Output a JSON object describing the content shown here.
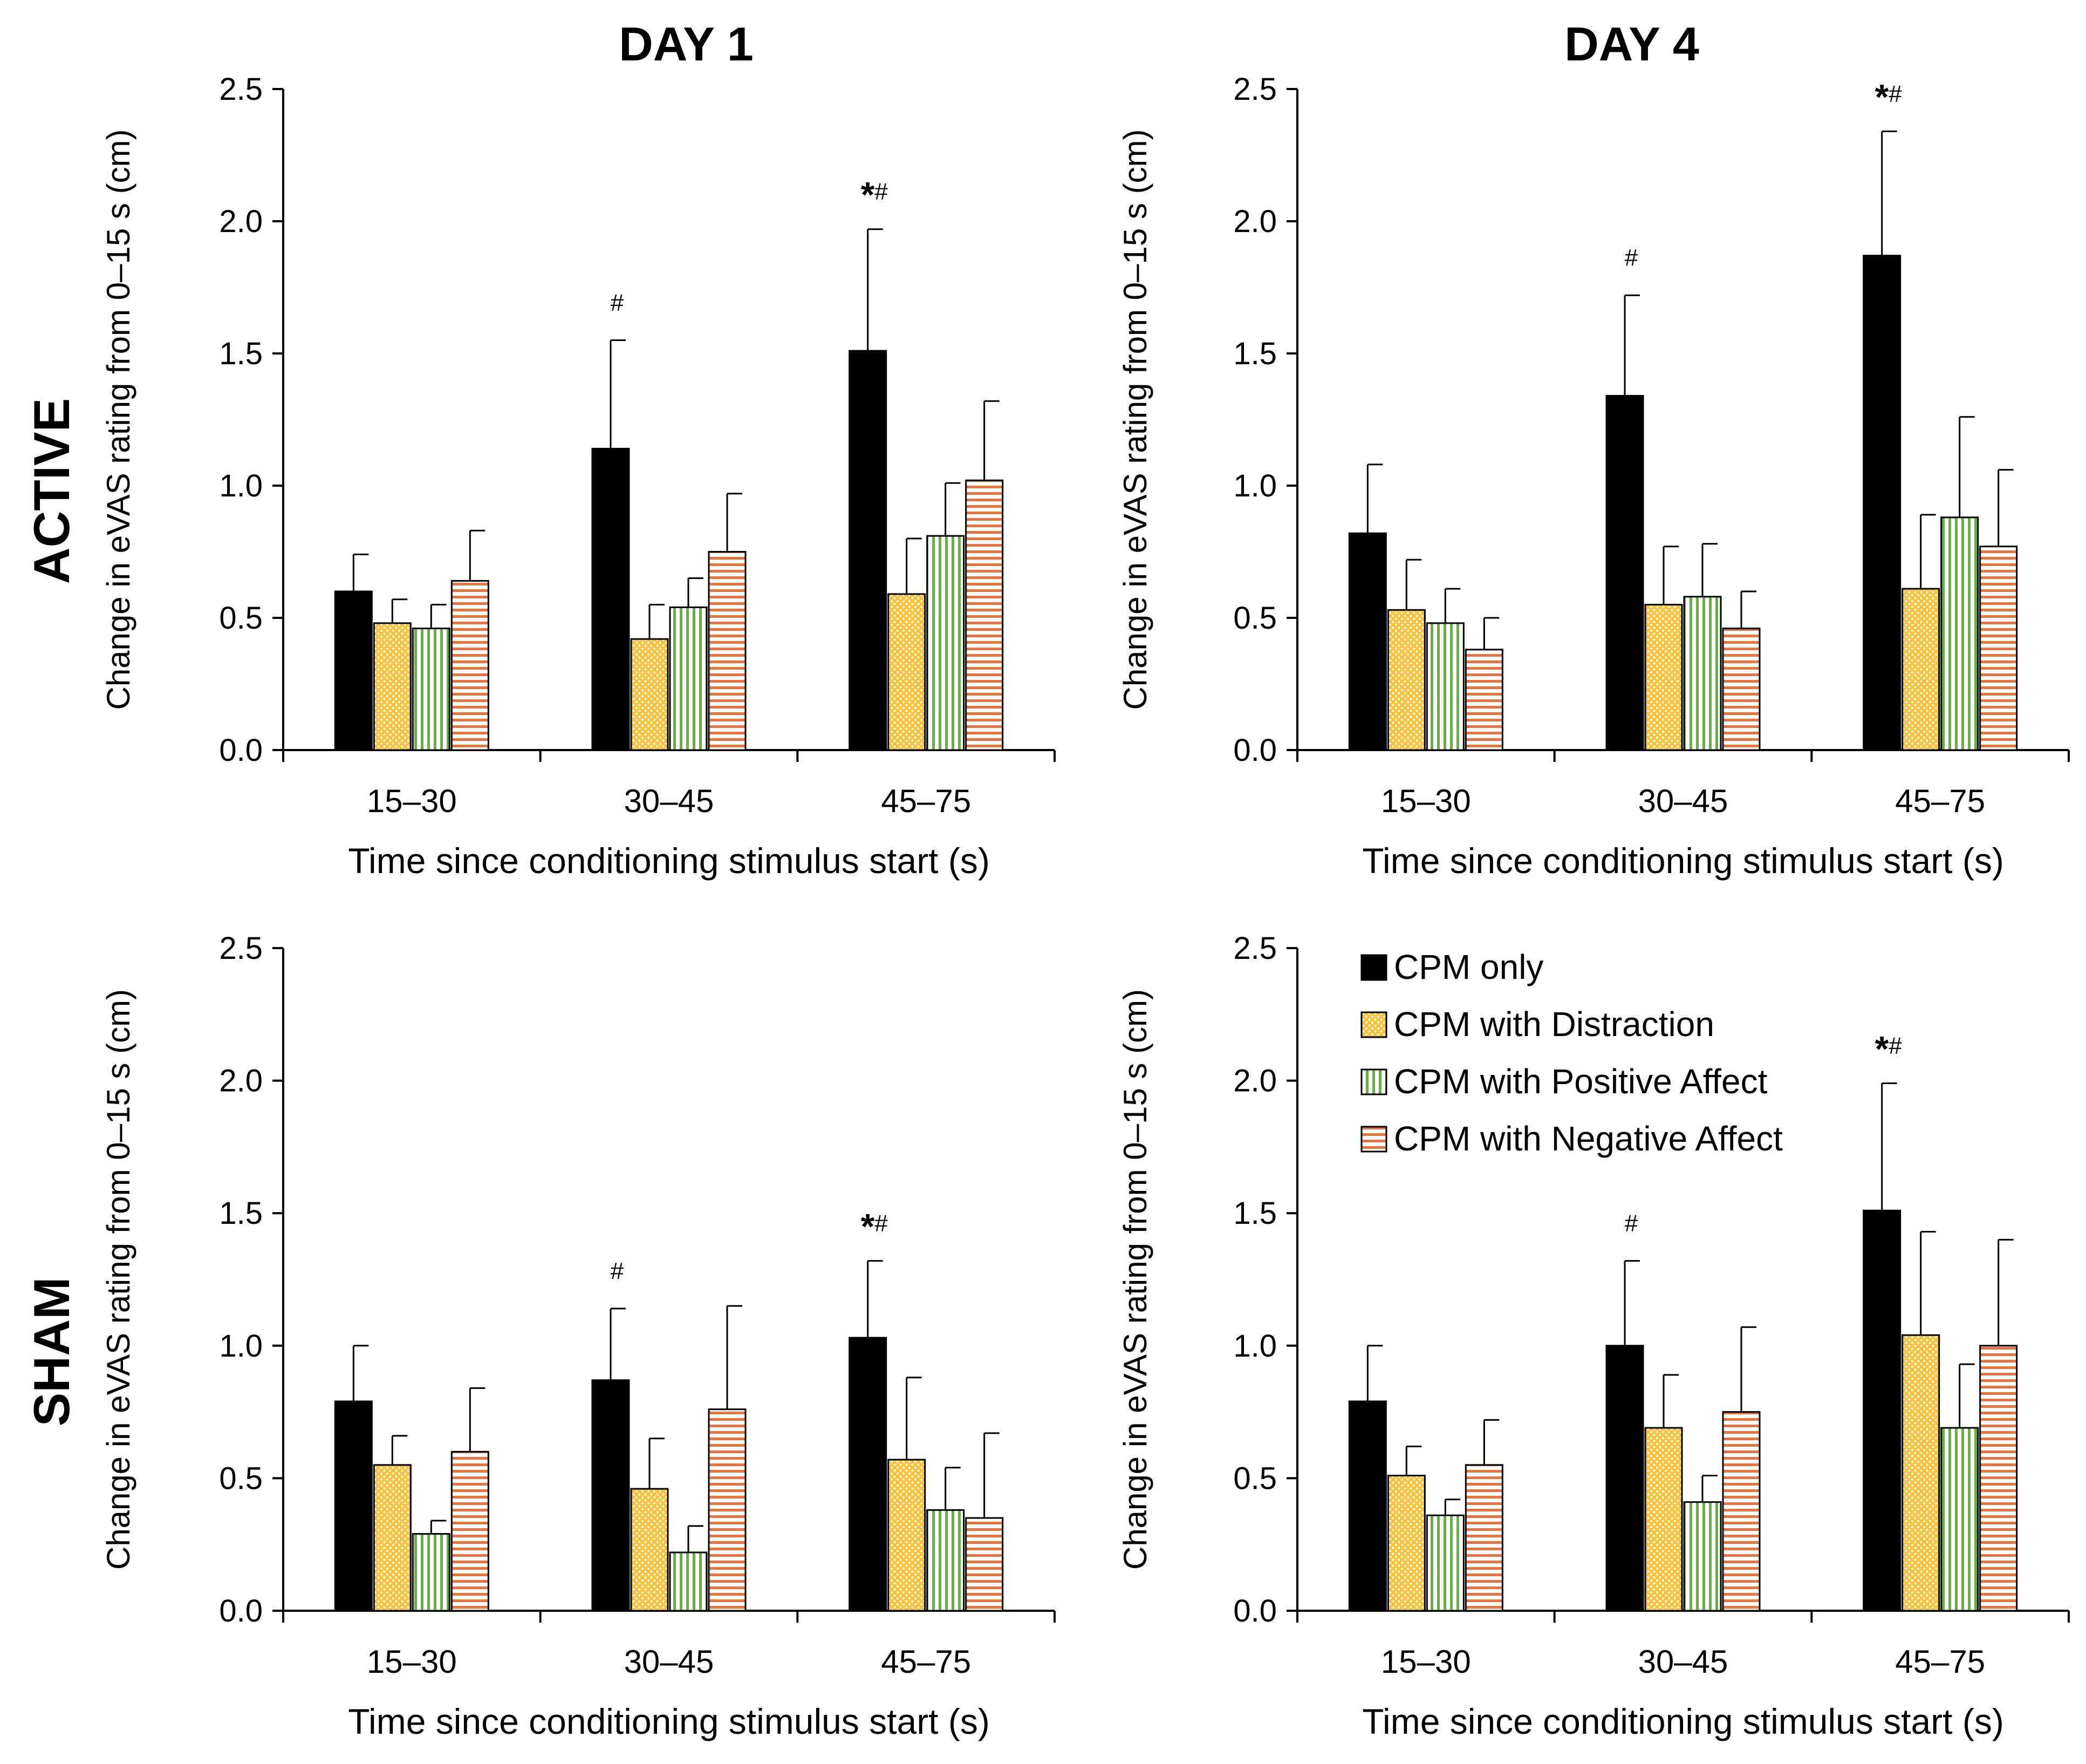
{
  "figure": {
    "col_titles": [
      "DAY 1",
      "DAY 4"
    ],
    "row_titles": [
      "ACTIVE",
      "SHAM"
    ]
  },
  "legend": {
    "items": [
      {
        "label": "CPM only",
        "pattern": "solid"
      },
      {
        "label": "CPM with Distraction",
        "pattern": "dots"
      },
      {
        "label": "CPM with Positive Affect",
        "pattern": "vertical"
      },
      {
        "label": "CPM with Negative Affect",
        "pattern": "horizontal"
      }
    ]
  },
  "colors": {
    "cpm_only": "#000000",
    "distraction": "#F5C242",
    "distraction_dot": "#FFF6D6",
    "positive": "#6AAF45",
    "negative": "#E8743B",
    "axis": "#000000"
  },
  "chart_data": [
    {
      "type": "bar",
      "panel": "active-day1",
      "title": "DAY 1",
      "row_title": "ACTIVE",
      "categories": [
        "15–30",
        "30–45",
        "45–75"
      ],
      "xlabel": "Time since conditioning stimulus start (s)",
      "ylabel": "Change in eVAS rating from 0–15 s (cm)",
      "ylim": [
        0,
        2.5
      ],
      "yticks": [
        "0.0",
        "0.5",
        "1.0",
        "1.5",
        "2.0",
        "2.5"
      ],
      "series": [
        {
          "name": "CPM only",
          "values": [
            0.6,
            1.14,
            1.51
          ],
          "errors": [
            0.14,
            0.41,
            0.46
          ]
        },
        {
          "name": "CPM with Distraction",
          "values": [
            0.48,
            0.42,
            0.59
          ],
          "errors": [
            0.09,
            0.13,
            0.21
          ]
        },
        {
          "name": "CPM with Positive Affect",
          "values": [
            0.46,
            0.54,
            0.81
          ],
          "errors": [
            0.09,
            0.11,
            0.2
          ]
        },
        {
          "name": "CPM with Negative Affect",
          "values": [
            0.64,
            0.75,
            1.02
          ],
          "errors": [
            0.19,
            0.22,
            0.3
          ]
        }
      ],
      "annotations": [
        {
          "category": 1,
          "star": "",
          "hash": "#"
        },
        {
          "category": 2,
          "star": "*",
          "hash": "#"
        }
      ]
    },
    {
      "type": "bar",
      "panel": "active-day4",
      "title": "DAY 4",
      "row_title": "ACTIVE",
      "categories": [
        "15–30",
        "30–45",
        "45–75"
      ],
      "xlabel": "Time since conditioning stimulus start (s)",
      "ylabel": "Change in eVAS rating from 0–15 s (cm)",
      "ylim": [
        0,
        2.5
      ],
      "yticks": [
        "0.0",
        "0.5",
        "1.0",
        "1.5",
        "2.0",
        "2.5"
      ],
      "series": [
        {
          "name": "CPM only",
          "values": [
            0.82,
            1.34,
            1.87
          ],
          "errors": [
            0.26,
            0.38,
            0.47
          ]
        },
        {
          "name": "CPM with Distraction",
          "values": [
            0.53,
            0.55,
            0.61
          ],
          "errors": [
            0.19,
            0.22,
            0.28
          ]
        },
        {
          "name": "CPM with Positive Affect",
          "values": [
            0.48,
            0.58,
            0.88
          ],
          "errors": [
            0.13,
            0.2,
            0.38
          ]
        },
        {
          "name": "CPM with Negative Affect",
          "values": [
            0.38,
            0.46,
            0.77
          ],
          "errors": [
            0.12,
            0.14,
            0.29
          ]
        }
      ],
      "annotations": [
        {
          "category": 1,
          "star": "",
          "hash": "#"
        },
        {
          "category": 2,
          "star": "*",
          "hash": "#"
        }
      ]
    },
    {
      "type": "bar",
      "panel": "sham-day1",
      "title": "DAY 1",
      "row_title": "SHAM",
      "categories": [
        "15–30",
        "30–45",
        "45–75"
      ],
      "xlabel": "Time since conditioning stimulus start (s)",
      "ylabel": "Change in eVAS rating from 0–15 s (cm)",
      "ylim": [
        0,
        2.5
      ],
      "yticks": [
        "0.0",
        "0.5",
        "1.0",
        "1.5",
        "2.0",
        "2.5"
      ],
      "series": [
        {
          "name": "CPM only",
          "values": [
            0.79,
            0.87,
            1.03
          ],
          "errors": [
            0.21,
            0.27,
            0.29
          ]
        },
        {
          "name": "CPM with Distraction",
          "values": [
            0.55,
            0.46,
            0.57
          ],
          "errors": [
            0.11,
            0.19,
            0.31
          ]
        },
        {
          "name": "CPM with Positive Affect",
          "values": [
            0.29,
            0.22,
            0.38
          ],
          "errors": [
            0.05,
            0.1,
            0.16
          ]
        },
        {
          "name": "CPM with Negative Affect",
          "values": [
            0.6,
            0.76,
            0.35
          ],
          "errors": [
            0.24,
            0.39,
            0.32
          ]
        }
      ],
      "annotations": [
        {
          "category": 1,
          "star": "",
          "hash": "#"
        },
        {
          "category": 2,
          "star": "*",
          "hash": "#"
        }
      ]
    },
    {
      "type": "bar",
      "panel": "sham-day4",
      "title": "DAY 4",
      "row_title": "SHAM",
      "categories": [
        "15–30",
        "30–45",
        "45–75"
      ],
      "xlabel": "Time since conditioning stimulus start (s)",
      "ylabel": "Change in eVAS rating from 0–15 s (cm)",
      "ylim": [
        0,
        2.5
      ],
      "yticks": [
        "0.0",
        "0.5",
        "1.0",
        "1.5",
        "2.0",
        "2.5"
      ],
      "series": [
        {
          "name": "CPM only",
          "values": [
            0.79,
            1.0,
            1.51
          ],
          "errors": [
            0.21,
            0.32,
            0.48
          ]
        },
        {
          "name": "CPM with Distraction",
          "values": [
            0.51,
            0.69,
            1.04
          ],
          "errors": [
            0.11,
            0.2,
            0.39
          ]
        },
        {
          "name": "CPM with Positive Affect",
          "values": [
            0.36,
            0.41,
            0.69
          ],
          "errors": [
            0.06,
            0.1,
            0.24
          ]
        },
        {
          "name": "CPM with Negative Affect",
          "values": [
            0.55,
            0.75,
            1.0
          ],
          "errors": [
            0.17,
            0.32,
            0.4
          ]
        }
      ],
      "annotations": [
        {
          "category": 1,
          "star": "",
          "hash": "#"
        },
        {
          "category": 2,
          "star": "*",
          "hash": "#"
        }
      ],
      "show_legend": true
    }
  ]
}
